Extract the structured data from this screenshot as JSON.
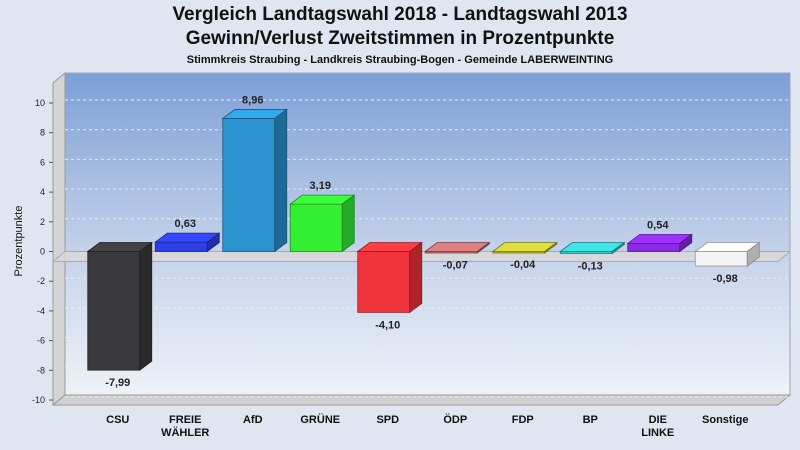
{
  "title_line1": "Vergleich Landtagswahl 2018 - Landtagswahl 2013",
  "title_line2": "Gewinn/Verlust Zweitstimmen in Prozentpunkte",
  "subtitle": "Stimmkreis Straubing - Landkreis Straubing-Bogen - Gemeinde LABERWEINTING",
  "chart_data": {
    "type": "bar",
    "title": "Vergleich Landtagswahl 2018 - Landtagswahl 2013",
    "subtitle": "Gewinn/Verlust Zweitstimmen in Prozentpunkte",
    "ylabel": "Prozentpunkte",
    "xlabel": "",
    "ylim": [
      -10,
      10
    ],
    "yticks": [
      10,
      8,
      6,
      4,
      2,
      0,
      -2,
      -4,
      -6,
      -8,
      -10
    ],
    "grid": true,
    "categories": [
      [
        "CSU"
      ],
      [
        "FREIE",
        "WÄHLER"
      ],
      [
        "AfD"
      ],
      [
        "GRÜNE"
      ],
      [
        "SPD"
      ],
      [
        "ÖDP"
      ],
      [
        "FDP"
      ],
      [
        "BP"
      ],
      [
        "DIE",
        "LINKE"
      ],
      [
        "Sonstige"
      ]
    ],
    "values": [
      -7.99,
      0.63,
      8.96,
      3.19,
      -4.1,
      -0.07,
      -0.04,
      -0.13,
      0.54,
      -0.98
    ],
    "value_labels": [
      "-7,99",
      "0,63",
      "8,96",
      "3,19",
      "-4,10",
      "-0,07",
      "-0,04",
      "-0,13",
      "0,54",
      "-0,98"
    ],
    "colors": [
      "#3a3a3c",
      "#2f3fe8",
      "#2a93d0",
      "#33ee33",
      "#f0343c",
      "#c07070",
      "#c2c236",
      "#36c8c8",
      "#8a2be2",
      "#f4f4f4"
    ]
  }
}
